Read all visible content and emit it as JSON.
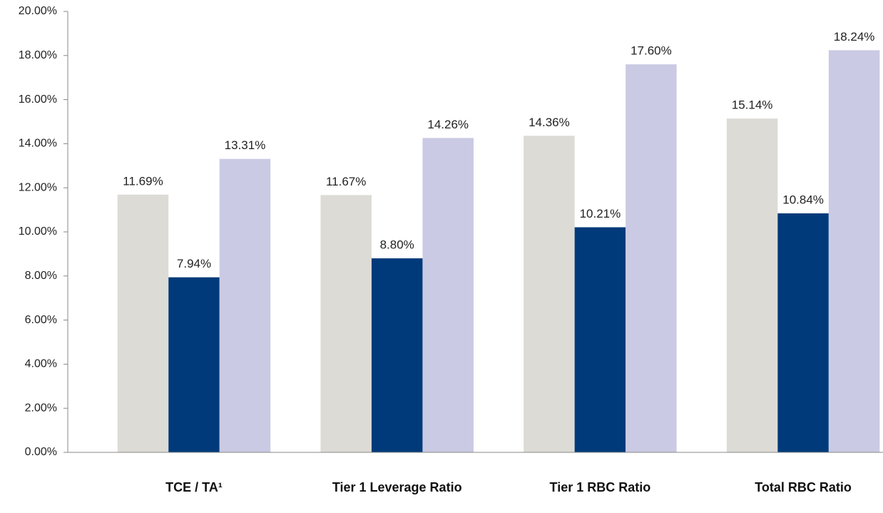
{
  "chart_data": {
    "type": "bar",
    "categories": [
      "TCE / TA¹",
      "Tier 1 Leverage Ratio",
      "Tier 1 RBC Ratio",
      "Total RBC Ratio"
    ],
    "series": [
      {
        "color": "#dcdbd6",
        "values": [
          11.69,
          11.67,
          14.36,
          15.14
        ],
        "value_labels": [
          "11.69%",
          "11.67%",
          "14.36%",
          "15.14%"
        ]
      },
      {
        "color": "#003a7a",
        "values": [
          7.94,
          8.8,
          10.21,
          10.84
        ],
        "value_labels": [
          "7.94%",
          "8.80%",
          "10.21%",
          "10.84%"
        ]
      },
      {
        "color": "#cacae4",
        "values": [
          13.31,
          14.26,
          17.6,
          18.24
        ],
        "value_labels": [
          "13.31%",
          "14.26%",
          "17.60%",
          "18.24%"
        ]
      }
    ],
    "ylim": [
      0,
      20
    ],
    "yticks": [
      {
        "value": 0,
        "label": "0.00%"
      },
      {
        "value": 2,
        "label": "2.00%"
      },
      {
        "value": 4,
        "label": "4.00%"
      },
      {
        "value": 6,
        "label": "6.00%"
      },
      {
        "value": 8,
        "label": "8.00%"
      },
      {
        "value": 10,
        "label": "10.00%"
      },
      {
        "value": 12,
        "label": "12.00%"
      },
      {
        "value": 14,
        "label": "14.00%"
      },
      {
        "value": 16,
        "label": "16.00%"
      },
      {
        "value": 18,
        "label": "18.00%"
      },
      {
        "value": 20,
        "label": "20.00%"
      }
    ]
  }
}
